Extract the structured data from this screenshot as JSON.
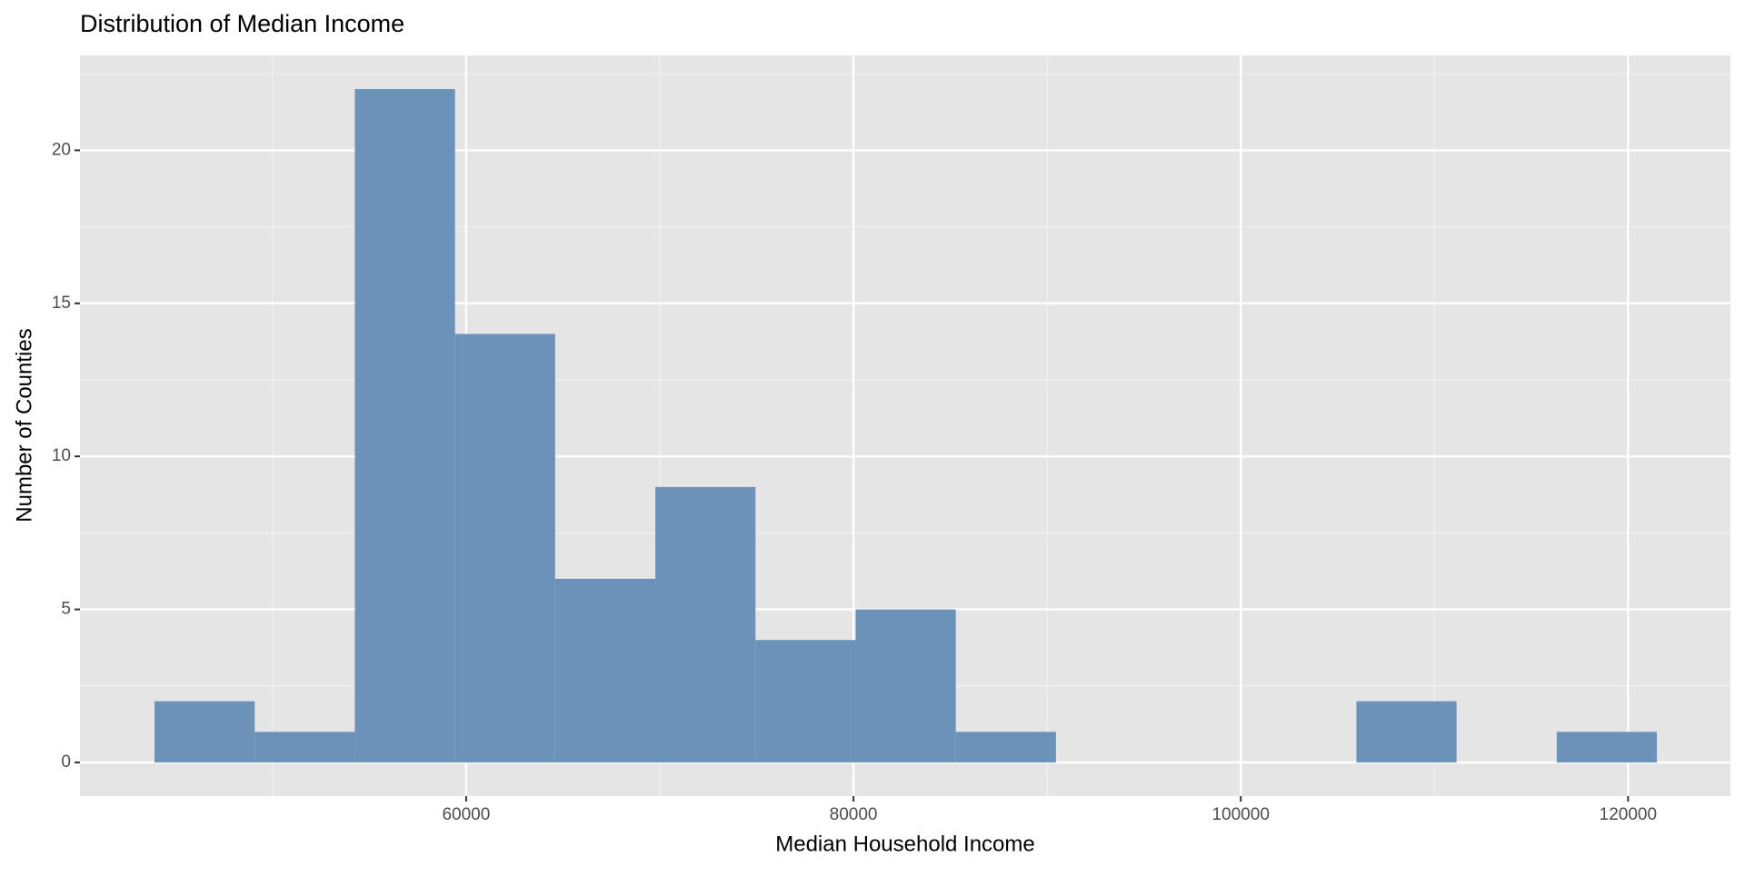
{
  "chart_data": {
    "type": "histogram",
    "title": "Distribution of Median Income",
    "x_label": "Median Household Income",
    "y_label": "Number of Counties",
    "bins": [
      43908,
      49080,
      54252,
      59424,
      64596,
      69768,
      74940,
      80112,
      85284,
      90456,
      95628,
      100800,
      105972,
      111144,
      116316,
      121488
    ],
    "counts": [
      2,
      1,
      22,
      14,
      6,
      9,
      4,
      5,
      1,
      0,
      0,
      0,
      2,
      0,
      1
    ],
    "color": "#6b93ba",
    "xlim": [
      40058,
      125287
    ],
    "xticks": [
      60000,
      80000,
      100000,
      120000
    ],
    "xminor": [
      50000,
      70000,
      90000,
      110000
    ],
    "ylim": [
      -1.1,
      23.1
    ],
    "yticks": [
      0,
      5,
      10,
      15,
      20
    ],
    "yminor": [
      2.5,
      7.5,
      12.5,
      17.5,
      22.5
    ],
    "grid": true
  }
}
